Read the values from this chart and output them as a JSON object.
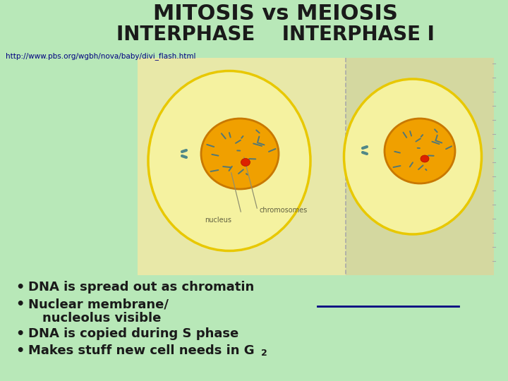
{
  "bg_color": "#b8e8b8",
  "title_line1": "MITOSIS vs MEIOSIS",
  "title_line2": "INTERPHASE    INTERPHASE I",
  "title_color": "#1a1a1a",
  "title_fontsize": 22,
  "title2_fontsize": 20,
  "url_text": "http://www.pbs.org/wgbh/nova/baby/divi_flash.html",
  "url_color": "#000080",
  "url_fontsize": 7.5,
  "left_panel_color": "#e8e8a8",
  "right_panel_color": "#d4d8a0",
  "cell_outer_color": "#f5f2a0",
  "cell_edge_color": "#e8c800",
  "nuc_face_color": "#f0a000",
  "nuc_edge_color": "#c87800",
  "chrom_color": "#507878",
  "red_dot_color": "#dd2200",
  "cent_color": "#508888",
  "label_color": "#606040",
  "annot_line_color": "#909070",
  "bullet_color": "#1a1a1a",
  "bullet_fontsize": 13,
  "underline_color": "#000080",
  "dashed_line_color": "#aaaaaa"
}
